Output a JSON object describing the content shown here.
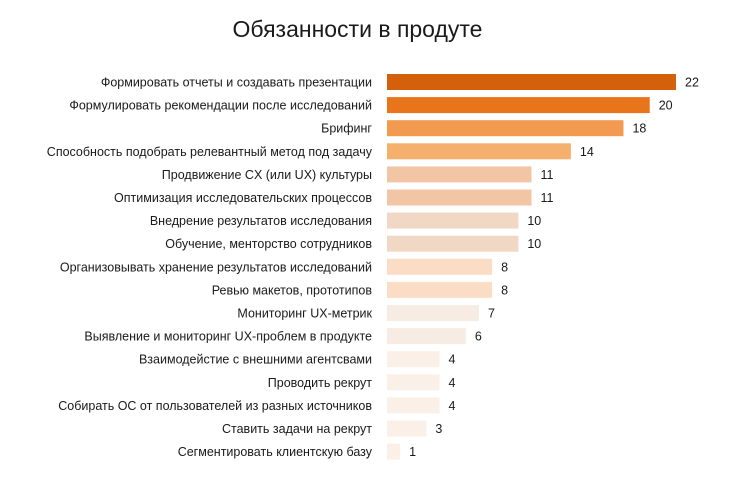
{
  "chart_data": {
    "type": "bar",
    "orientation": "horizontal",
    "title": "Обязанности в продуте",
    "xlabel": "",
    "ylabel": "",
    "grid": false,
    "legend": "none",
    "xlim": [
      0,
      22
    ],
    "categories": [
      "Формировать отчеты и создавать презентации",
      "Формулировать рекомендации после исследований",
      "Брифинг",
      "Способность подобрать релевантный  метод под задачу",
      "Продвижение CX (или UX) культуры",
      "Оптимизация исследовательских процессов",
      "Внедрение результатов исследования",
      "Обучение, менторство сотрудников",
      "Организовывать хранение результатов исследований",
      "Ревью макетов, прототипов",
      "Мониторинг UX-метрик",
      "Выявление и мониторинг UX-проблем в продукте",
      "Взаимодейстие с внешними агентсвами",
      "Проводить рекрут",
      "Собирать ОС от пользователей из разных источников",
      "Ставить задачи на рекрут",
      "Сегментировать клиентскую базу"
    ],
    "values": [
      22,
      20,
      18,
      14,
      11,
      11,
      10,
      10,
      8,
      8,
      7,
      6,
      4,
      4,
      4,
      3,
      1
    ],
    "colors": [
      "#d4600c",
      "#e8751b",
      "#f29a4f",
      "#f5b06e",
      "#f2c6a4",
      "#f2c6a4",
      "#f0d8c5",
      "#f0d8c5",
      "#fbdcc5",
      "#fbdcc5",
      "#f7ece3",
      "#f7ece3",
      "#faf0e8",
      "#faf0e8",
      "#faf0e8",
      "#faf0e8",
      "#faf0e8"
    ]
  }
}
